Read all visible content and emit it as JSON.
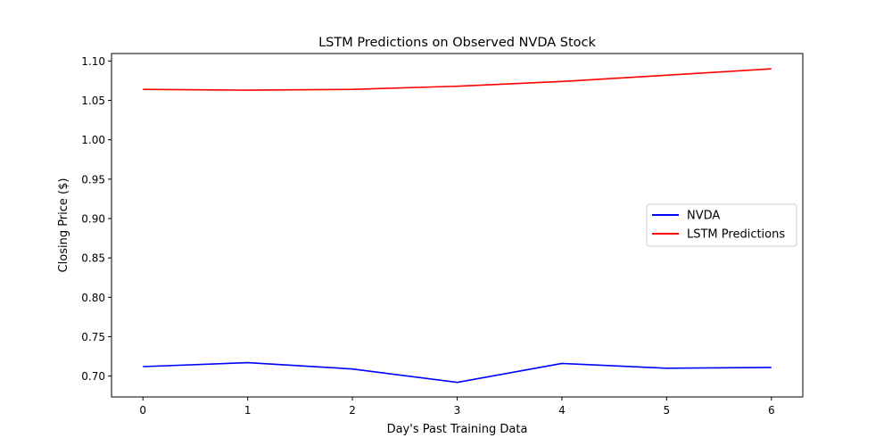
{
  "chart_data": {
    "type": "line",
    "title": "LSTM Predictions on Observed NVDA Stock",
    "xlabel": "Day's Past Training Data",
    "ylabel": "Closing Price ($)",
    "x": [
      0,
      1,
      2,
      3,
      4,
      5,
      6
    ],
    "xlim": [
      -0.3,
      6.3
    ],
    "ylim": [
      0.6735,
      1.1095
    ],
    "xticks": [
      "0",
      "1",
      "2",
      "3",
      "4",
      "5",
      "6"
    ],
    "yticks": [
      "0.70",
      "0.75",
      "0.80",
      "0.85",
      "0.90",
      "0.95",
      "1.00",
      "1.05",
      "1.10"
    ],
    "grid": false,
    "legend_position": "center-right",
    "series": [
      {
        "name": "NVDA",
        "color": "#0000ff",
        "values": [
          0.712,
          0.717,
          0.709,
          0.692,
          0.716,
          0.71,
          0.711
        ]
      },
      {
        "name": "LSTM Predictions",
        "color": "#ff0000",
        "values": [
          1.064,
          1.063,
          1.064,
          1.068,
          1.074,
          1.082,
          1.09
        ]
      }
    ]
  }
}
